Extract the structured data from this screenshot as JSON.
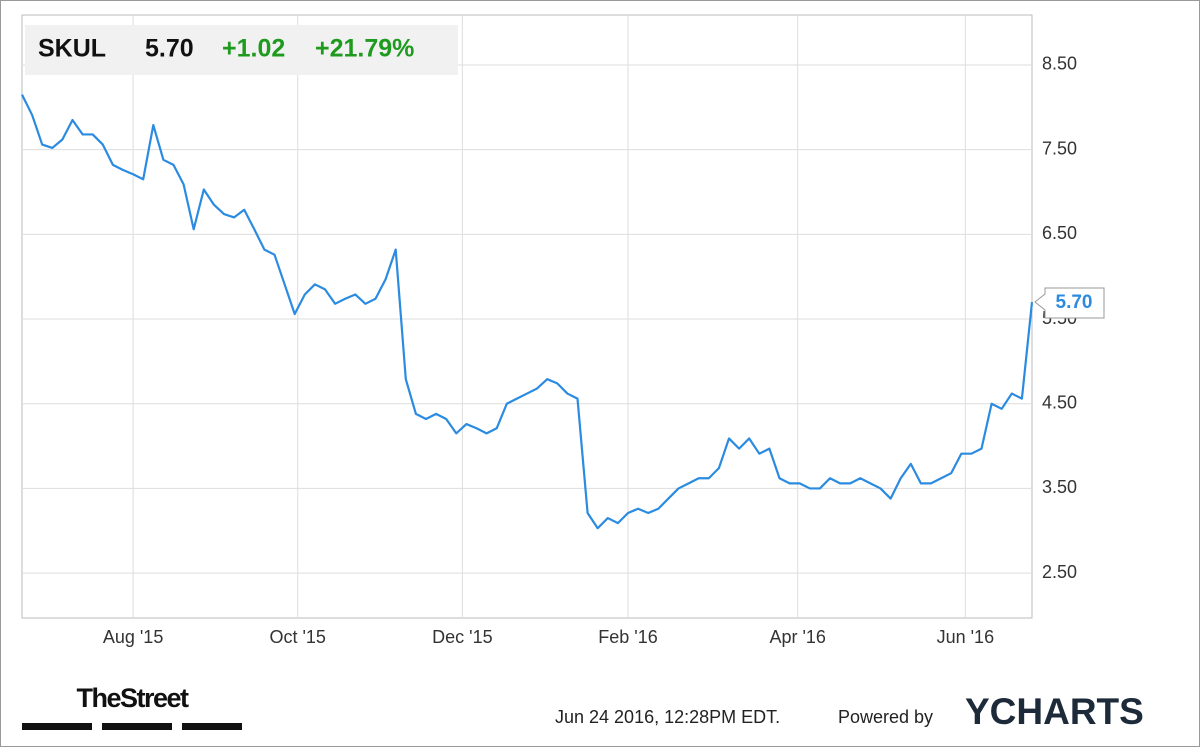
{
  "chart_data": {
    "type": "line",
    "ticker": "SKUL",
    "price": "5.70",
    "change": "+1.02",
    "change_pct": "+21.79%",
    "xlim": [
      0,
      100
    ],
    "xticks": [
      {
        "value": 11,
        "label": "Aug '15"
      },
      {
        "value": 27.3,
        "label": "Oct '15"
      },
      {
        "value": 43.6,
        "label": "Dec '15"
      },
      {
        "value": 60,
        "label": "Feb '16"
      },
      {
        "value": 76.8,
        "label": "Apr '16"
      },
      {
        "value": 93.4,
        "label": "Jun '16"
      }
    ],
    "ylim": [
      1.97,
      9.09
    ],
    "yticks": [
      {
        "value": 2.5,
        "label": "2.50"
      },
      {
        "value": 3.5,
        "label": "3.50"
      },
      {
        "value": 4.5,
        "label": "4.50"
      },
      {
        "value": 5.5,
        "label": "5.50"
      },
      {
        "value": 6.5,
        "label": "6.50"
      },
      {
        "value": 7.5,
        "label": "7.50"
      },
      {
        "value": 8.5,
        "label": "8.50"
      }
    ],
    "grid": true,
    "series": [
      {
        "name": "SKUL",
        "color": "#2b8be0",
        "values": [
          8.15,
          7.91,
          7.56,
          7.52,
          7.62,
          7.85,
          7.68,
          7.68,
          7.56,
          7.32,
          7.26,
          7.21,
          7.15,
          7.79,
          7.38,
          7.32,
          7.09,
          6.56,
          7.03,
          6.85,
          6.74,
          6.7,
          6.79,
          6.56,
          6.32,
          6.26,
          5.91,
          5.56,
          5.79,
          5.91,
          5.85,
          5.68,
          5.74,
          5.79,
          5.68,
          5.74,
          5.97,
          6.32,
          4.79,
          4.38,
          4.32,
          4.38,
          4.32,
          4.15,
          4.26,
          4.21,
          4.15,
          4.21,
          4.5,
          4.56,
          4.62,
          4.68,
          4.79,
          4.74,
          4.62,
          4.56,
          3.21,
          3.03,
          3.15,
          3.09,
          3.21,
          3.26,
          3.21,
          3.26,
          3.38,
          3.5,
          3.56,
          3.62,
          3.62,
          3.74,
          4.09,
          3.97,
          4.09,
          3.91,
          3.97,
          3.62,
          3.56,
          3.56,
          3.5,
          3.5,
          3.62,
          3.56,
          3.56,
          3.62,
          3.56,
          3.5,
          3.38,
          3.62,
          3.79,
          3.56,
          3.56,
          3.62,
          3.68,
          3.91,
          3.91,
          3.97,
          4.5,
          4.44,
          4.62,
          4.56,
          5.7
        ]
      }
    ],
    "timestamp": "Jun 24 2016, 12:28PM EDT.",
    "powered_by": "Powered by",
    "brand": "YCHARTS",
    "source": "TheStreet"
  }
}
